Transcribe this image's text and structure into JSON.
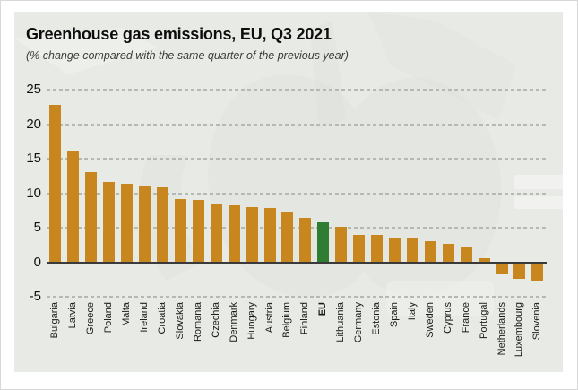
{
  "chart": {
    "title": "Greenhouse gas emissions, EU, Q3 2021",
    "subtitle": "(% change compared with the same quarter of the previous year)"
  },
  "chart_data": {
    "type": "bar",
    "title": "Greenhouse gas emissions, EU, Q3 2021",
    "subtitle": "(% change compared with the same quarter of the previous year)",
    "categories": [
      "Bulgaria",
      "Latvia",
      "Greece",
      "Poland",
      "Malta",
      "Ireland",
      "Croatia",
      "Slovakia",
      "Romania",
      "Czechia",
      "Denmark",
      "Hungary",
      "Austria",
      "Belgium",
      "Finland",
      "EU",
      "Lithuania",
      "Germany",
      "Estonia",
      "Spain",
      "Italy",
      "Sweden",
      "Cyprus",
      "France",
      "Portugal",
      "Netherlands",
      "Luxembourg",
      "Slovenia"
    ],
    "values": [
      22.8,
      16.2,
      13.1,
      11.6,
      11.4,
      11.0,
      10.9,
      9.2,
      9.0,
      8.5,
      8.2,
      8.0,
      7.8,
      7.4,
      6.4,
      5.8,
      5.1,
      4.0,
      3.9,
      3.6,
      3.4,
      3.0,
      2.6,
      2.2,
      0.6,
      -1.7,
      -2.4,
      -2.6
    ],
    "highlight_category": "EU",
    "xlabel": "",
    "ylabel": "",
    "ylim": [
      -5,
      25
    ],
    "yticks": [
      25,
      20,
      15,
      10,
      5,
      0,
      -5
    ],
    "grid": "horizontal-dashed",
    "legend": "none",
    "colors": {
      "bar": "#c8871e",
      "highlight_bar": "#2f7d33",
      "panel_background": "#e8eae6",
      "page_background": "#ffffff",
      "zero_line": "#3a3a3a",
      "gridline": "#b5b8b3",
      "title_text": "#0d0d0d",
      "subtitle_text": "#3d3d3d"
    }
  }
}
